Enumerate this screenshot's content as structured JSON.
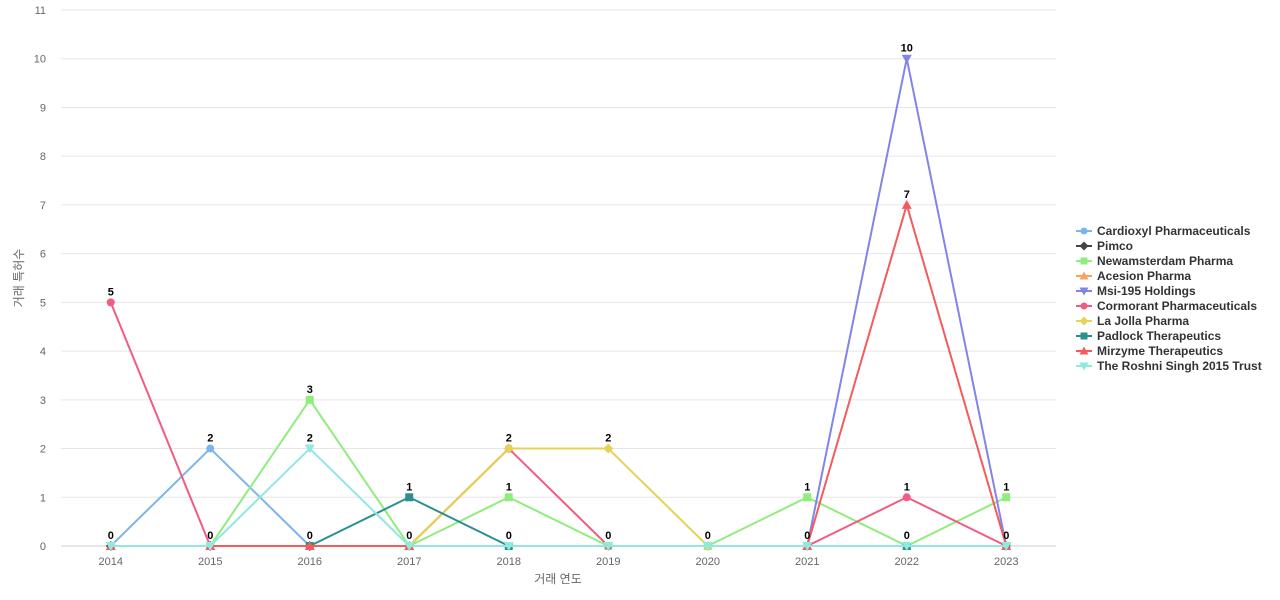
{
  "chart_data": {
    "type": "line",
    "xlabel": "거래 연도",
    "ylabel": "거래 특허수",
    "categories": [
      "2014",
      "2015",
      "2016",
      "2017",
      "2018",
      "2019",
      "2020",
      "2021",
      "2022",
      "2023"
    ],
    "ylim": [
      0,
      11
    ],
    "yticks": [
      0,
      1,
      2,
      3,
      4,
      5,
      6,
      7,
      8,
      9,
      10,
      11
    ],
    "grid": true,
    "legend_position": "right",
    "series": [
      {
        "name": "Cardioxyl Pharmaceuticals",
        "color": "#7cb5ec",
        "marker": "circle",
        "values": [
          0,
          2,
          0,
          null,
          null,
          null,
          null,
          null,
          null,
          null
        ]
      },
      {
        "name": "Pimco",
        "color": "#434348",
        "marker": "diamond",
        "values": [
          0,
          0,
          0,
          null,
          null,
          null,
          null,
          null,
          null,
          null
        ]
      },
      {
        "name": "Newamsterdam Pharma",
        "color": "#90ed7d",
        "marker": "square",
        "values": [
          null,
          0,
          3,
          0,
          1,
          0,
          0,
          1,
          0,
          1
        ]
      },
      {
        "name": "Acesion Pharma",
        "color": "#f7a35c",
        "marker": "triangle",
        "values": [
          null,
          null,
          null,
          0,
          2,
          null,
          null,
          null,
          null,
          null
        ]
      },
      {
        "name": "Msi-195 Holdings",
        "color": "#8085e9",
        "marker": "triangle-down",
        "values": [
          null,
          null,
          null,
          null,
          null,
          null,
          null,
          0,
          10,
          0
        ]
      },
      {
        "name": "Cormorant Pharmaceuticals",
        "color": "#f15c80",
        "marker": "circle",
        "values": [
          5,
          0,
          0,
          0,
          2,
          0,
          null,
          0,
          1,
          0
        ]
      },
      {
        "name": "La Jolla Pharma",
        "color": "#e4d354",
        "marker": "diamond",
        "values": [
          null,
          null,
          null,
          0,
          2,
          2,
          0,
          null,
          null,
          null
        ]
      },
      {
        "name": "Padlock Therapeutics",
        "color": "#2b908f",
        "marker": "square",
        "values": [
          null,
          null,
          0,
          1,
          0,
          null,
          null,
          null,
          0,
          0
        ]
      },
      {
        "name": "Mirzyme Therapeutics",
        "color": "#f45b5b",
        "marker": "triangle",
        "values": [
          0,
          0,
          0,
          0,
          null,
          null,
          null,
          0,
          7,
          0
        ]
      },
      {
        "name": "The Roshni Singh 2015 Trust",
        "color": "#91e8e1",
        "marker": "triangle-down",
        "values": [
          0,
          0,
          2,
          0,
          0,
          0,
          0,
          0,
          0,
          0
        ]
      }
    ],
    "data_labels": [
      {
        "x": "2014",
        "text": "0"
      },
      {
        "x": "2014",
        "y": 5,
        "text": "5"
      },
      {
        "x": "2015",
        "text": "0"
      },
      {
        "x": "2015",
        "y": 2,
        "text": "2"
      },
      {
        "x": "2016",
        "text": "0"
      },
      {
        "x": "2016",
        "y": 2,
        "text": "2"
      },
      {
        "x": "2016",
        "y": 3,
        "text": "3"
      },
      {
        "x": "2017",
        "text": "0"
      },
      {
        "x": "2017",
        "y": 1,
        "text": "1"
      },
      {
        "x": "2018",
        "text": "0"
      },
      {
        "x": "2018",
        "y": 1,
        "text": "1"
      },
      {
        "x": "2018",
        "y": 2,
        "text": "2"
      },
      {
        "x": "2019",
        "text": "0"
      },
      {
        "x": "2019",
        "y": 2,
        "text": "2"
      },
      {
        "x": "2020",
        "text": "0"
      },
      {
        "x": "2021",
        "text": "0"
      },
      {
        "x": "2021",
        "y": 1,
        "text": "1"
      },
      {
        "x": "2022",
        "text": "0"
      },
      {
        "x": "2022",
        "y": 1,
        "text": "1"
      },
      {
        "x": "2022",
        "y": 7,
        "text": "7"
      },
      {
        "x": "2022",
        "y": 10,
        "text": "10"
      },
      {
        "x": "2023",
        "text": "0"
      },
      {
        "x": "2023",
        "y": 1,
        "text": "1"
      }
    ]
  }
}
